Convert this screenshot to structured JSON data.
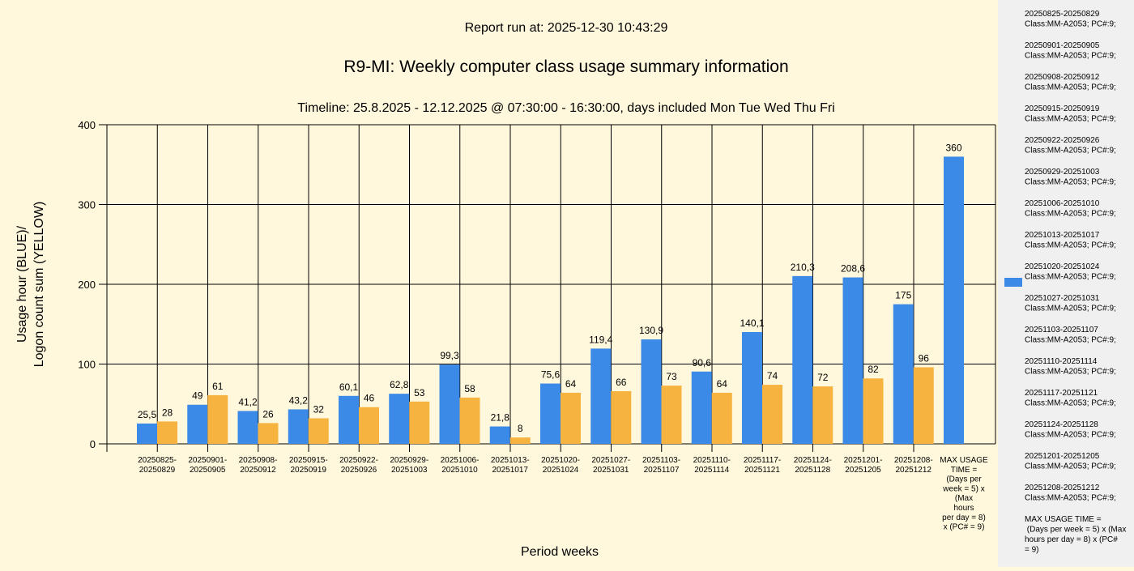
{
  "header": {
    "report_run": "Report run at: 2025-12-30 10:43:29",
    "title": "R9-MI: Weekly computer class usage summary information",
    "timeline": "Timeline:  25.8.2025  - 12.12.2025  @  07:30:00 -  16:30:00, days included Mon Tue Wed Thu Fri"
  },
  "colors": {
    "blue": "#3c8ae8",
    "yellow": "#f6b33f",
    "background": "#fff8dc",
    "legend_bg": "#f0f0f0"
  },
  "chart_data": {
    "type": "bar",
    "title": "R9-MI: Weekly computer class usage summary information",
    "xlabel": "Period weeks",
    "ylabel_lines": [
      "Usage hour (BLUE)/",
      "Logon count sum (YELLOW)"
    ],
    "ylim": [
      0,
      400
    ],
    "yticks": [
      0,
      100,
      200,
      300,
      400
    ],
    "grid": true,
    "categories": [
      [
        "20250825-",
        "20250829"
      ],
      [
        "20250901-",
        "20250905"
      ],
      [
        "20250908-",
        "20250912"
      ],
      [
        "20250915-",
        "20250919"
      ],
      [
        "20250922-",
        "20250926"
      ],
      [
        "20250929-",
        "20251003"
      ],
      [
        "20251006-",
        "20251010"
      ],
      [
        "20251013-",
        "20251017"
      ],
      [
        "20251020-",
        "20251024"
      ],
      [
        "20251027-",
        "20251031"
      ],
      [
        "20251103-",
        "20251107"
      ],
      [
        "20251110-",
        "20251114"
      ],
      [
        "20251117-",
        "20251121"
      ],
      [
        "20251124-",
        "20251128"
      ],
      [
        "20251201-",
        "20251205"
      ],
      [
        "20251208-",
        "20251212"
      ],
      [
        "MAX USAGE",
        "TIME =",
        "(Days per",
        "week = 5) x",
        "(Max",
        "hours",
        "per day = 8)",
        "x (PC# = 9)"
      ]
    ],
    "series": [
      {
        "name": "Usage hour (BLUE)",
        "color": "#3c8ae8",
        "values": [
          25.5,
          49,
          41.2,
          43.2,
          60.1,
          62.8,
          99.3,
          21.8,
          75.6,
          119.4,
          130.9,
          90.6,
          140.1,
          210.3,
          208.6,
          175,
          360
        ],
        "labels": [
          "25,5",
          "49",
          "41,2",
          "43,2",
          "60,1",
          "62,8",
          "99,3",
          "21,8",
          "75,6",
          "119,4",
          "130,9",
          "90,6",
          "140,1",
          "210,3",
          "208,6",
          "175",
          "360"
        ]
      },
      {
        "name": "Logon count sum (YELLOW)",
        "color": "#f6b33f",
        "values": [
          28,
          61,
          26,
          32,
          46,
          53,
          58,
          8,
          64,
          66,
          73,
          64,
          74,
          72,
          82,
          96,
          null
        ],
        "labels": [
          "28",
          "61",
          "26",
          "32",
          "46",
          "53",
          "58",
          "8",
          "64",
          "66",
          "73",
          "64",
          "74",
          "72",
          "82",
          "96",
          null
        ]
      }
    ]
  },
  "legend": {
    "items": [
      [
        "20250825-20250829",
        "Class:MM-A2053; PC#:9;"
      ],
      [
        "20250901-20250905",
        "Class:MM-A2053; PC#:9;"
      ],
      [
        "20250908-20250912",
        "Class:MM-A2053; PC#:9;"
      ],
      [
        "20250915-20250919",
        "Class:MM-A2053; PC#:9;"
      ],
      [
        "20250922-20250926",
        "Class:MM-A2053; PC#:9;"
      ],
      [
        "20250929-20251003",
        "Class:MM-A2053; PC#:9;"
      ],
      [
        "20251006-20251010",
        "Class:MM-A2053; PC#:9;"
      ],
      [
        "20251013-20251017",
        "Class:MM-A2053; PC#:9;"
      ],
      [
        "20251020-20251024",
        "Class:MM-A2053; PC#:9;"
      ],
      [
        "20251027-20251031",
        "Class:MM-A2053; PC#:9;"
      ],
      [
        "20251103-20251107",
        "Class:MM-A2053; PC#:9;"
      ],
      [
        "20251110-20251114",
        "Class:MM-A2053; PC#:9;"
      ],
      [
        "20251117-20251121",
        "Class:MM-A2053; PC#:9;"
      ],
      [
        "20251124-20251128",
        "Class:MM-A2053; PC#:9;"
      ],
      [
        "20251201-20251205",
        "Class:MM-A2053; PC#:9;"
      ],
      [
        "20251208-20251212",
        "Class:MM-A2053; PC#:9;"
      ],
      [
        "MAX USAGE TIME =",
        " (Days per week = 5) x (Max",
        "hours per day = 8) x (PC#",
        "= 9)"
      ]
    ]
  }
}
